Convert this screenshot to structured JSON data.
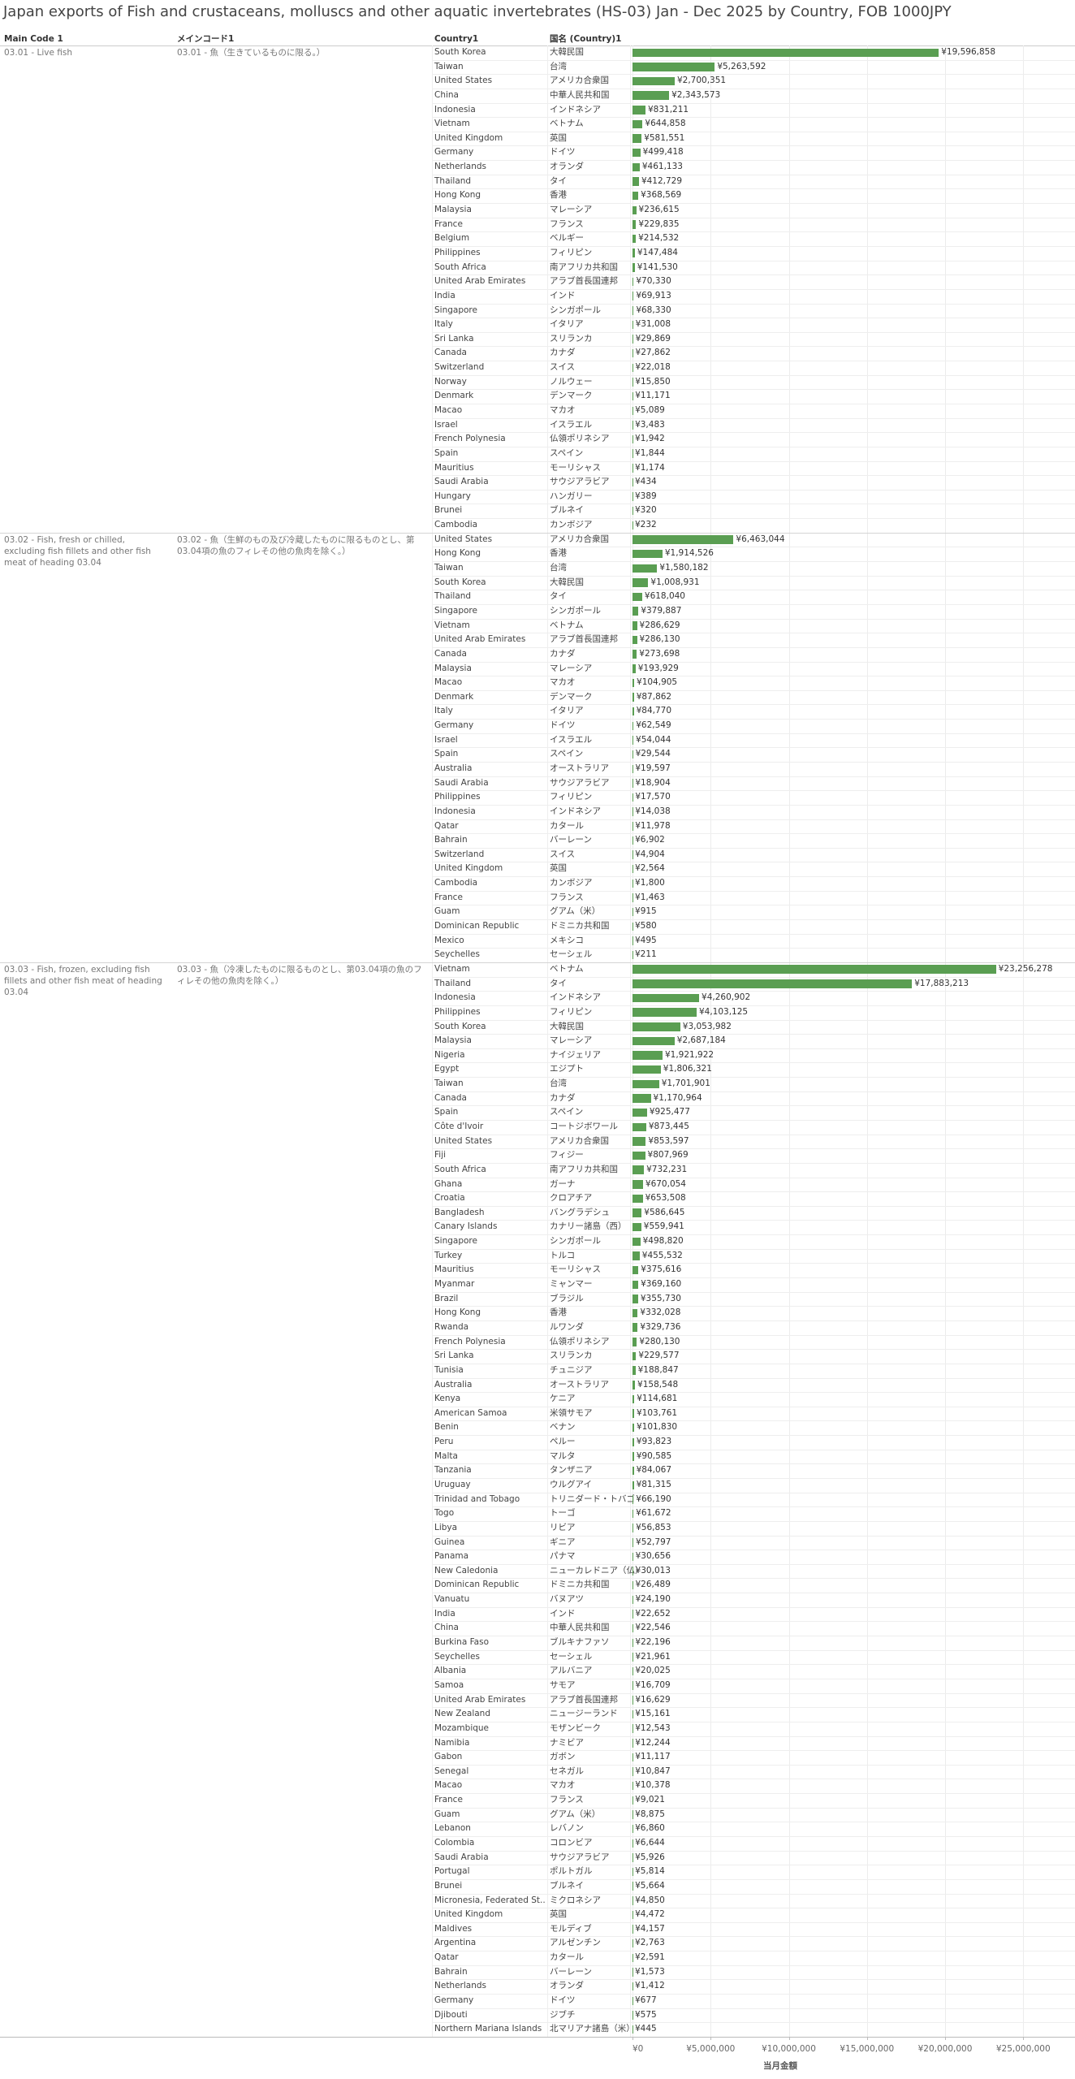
{
  "chart_data": {
    "type": "bar",
    "orientation": "horizontal",
    "title": "Japan exports of Fish and crustaceans, molluscs and other aquatic invertebrates (HS-03) Jan - Dec 2025 by Country, FOB 1000JPY",
    "columns": [
      "Main Code 1",
      "メインコード1",
      "Country1",
      "国名 (Country)1"
    ],
    "x_label": "当月金額",
    "color": "#5a9e52",
    "xlim": [
      0,
      28000000
    ],
    "xticks": [
      {
        "value": 0,
        "label": "¥0"
      },
      {
        "value": 5000000,
        "label": "¥5,000,000"
      },
      {
        "value": 10000000,
        "label": "¥10,000,000"
      },
      {
        "value": 15000000,
        "label": "¥15,000,000"
      },
      {
        "value": 20000000,
        "label": "¥20,000,000"
      },
      {
        "value": 25000000,
        "label": "¥25,000,000"
      }
    ],
    "grid": true,
    "groups": [
      {
        "code": "03.01 - Live fish",
        "code_ja": "03.01 - 魚（生きているものに限る。）",
        "categories": [
          "South Korea",
          "Taiwan",
          "United States",
          "China",
          "Indonesia",
          "Vietnam",
          "United Kingdom",
          "Germany",
          "Netherlands",
          "Thailand",
          "Hong Kong",
          "Malaysia",
          "France",
          "Belgium",
          "Philippines",
          "South Africa",
          "United Arab Emirates",
          "India",
          "Singapore",
          "Italy",
          "Sri Lanka",
          "Canada",
          "Switzerland",
          "Norway",
          "Denmark",
          "Macao",
          "Israel",
          "French Polynesia",
          "Spain",
          "Mauritius",
          "Saudi Arabia",
          "Hungary",
          "Brunei",
          "Cambodia"
        ],
        "categories_ja": [
          "大韓民国",
          "台湾",
          "アメリカ合衆国",
          "中華人民共和国",
          "インドネシア",
          "ベトナム",
          "英国",
          "ドイツ",
          "オランダ",
          "タイ",
          "香港",
          "マレーシア",
          "フランス",
          "ベルギー",
          "フィリピン",
          "南アフリカ共和国",
          "アラブ首長国連邦",
          "インド",
          "シンガポール",
          "イタリア",
          "スリランカ",
          "カナダ",
          "スイス",
          "ノルウェー",
          "デンマーク",
          "マカオ",
          "イスラエル",
          "仏領ポリネシア",
          "スペイン",
          "モーリシャス",
          "サウジアラビア",
          "ハンガリー",
          "ブルネイ",
          "カンボジア"
        ],
        "values": [
          19596858,
          5263592,
          2700351,
          2343573,
          831211,
          644858,
          581551,
          499418,
          461133,
          412729,
          368569,
          236615,
          229835,
          214532,
          147484,
          141530,
          70330,
          69913,
          68330,
          31008,
          29869,
          27862,
          22018,
          15850,
          11171,
          5089,
          3483,
          1942,
          1844,
          1174,
          434,
          389,
          320,
          232
        ],
        "value_labels": [
          "¥19,596,858",
          "¥5,263,592",
          "¥2,700,351",
          "¥2,343,573",
          "¥831,211",
          "¥644,858",
          "¥581,551",
          "¥499,418",
          "¥461,133",
          "¥412,729",
          "¥368,569",
          "¥236,615",
          "¥229,835",
          "¥214,532",
          "¥147,484",
          "¥141,530",
          "¥70,330",
          "¥69,913",
          "¥68,330",
          "¥31,008",
          "¥29,869",
          "¥27,862",
          "¥22,018",
          "¥15,850",
          "¥11,171",
          "¥5,089",
          "¥3,483",
          "¥1,942",
          "¥1,844",
          "¥1,174",
          "¥434",
          "¥389",
          "¥320",
          "¥232"
        ]
      },
      {
        "code": "03.02 - Fish, fresh or chilled, excluding fish fillets and other fish meat of heading 03.04",
        "code_ja": "03.02 - 魚（生鮮のもの及び冷蔵したものに限るものとし、第03.04項の魚のフィレその他の魚肉を除く。）",
        "categories": [
          "United States",
          "Hong Kong",
          "Taiwan",
          "South Korea",
          "Thailand",
          "Singapore",
          "Vietnam",
          "United Arab Emirates",
          "Canada",
          "Malaysia",
          "Macao",
          "Denmark",
          "Italy",
          "Germany",
          "Israel",
          "Spain",
          "Australia",
          "Saudi Arabia",
          "Philippines",
          "Indonesia",
          "Qatar",
          "Bahrain",
          "Switzerland",
          "United Kingdom",
          "Cambodia",
          "France",
          "Guam",
          "Dominican Republic",
          "Mexico",
          "Seychelles"
        ],
        "categories_ja": [
          "アメリカ合衆国",
          "香港",
          "台湾",
          "大韓民国",
          "タイ",
          "シンガポール",
          "ベトナム",
          "アラブ首長国連邦",
          "カナダ",
          "マレーシア",
          "マカオ",
          "デンマーク",
          "イタリア",
          "ドイツ",
          "イスラエル",
          "スペイン",
          "オーストラリア",
          "サウジアラビア",
          "フィリピン",
          "インドネシア",
          "カタール",
          "バーレーン",
          "スイス",
          "英国",
          "カンボジア",
          "フランス",
          "グアム（米）",
          "ドミニカ共和国",
          "メキシコ",
          "セーシェル"
        ],
        "values": [
          6463044,
          1914526,
          1580182,
          1008931,
          618040,
          379887,
          286629,
          286130,
          273698,
          193929,
          104905,
          87862,
          84770,
          62549,
          54044,
          29544,
          19597,
          18904,
          17570,
          14038,
          11978,
          6902,
          4904,
          2564,
          1800,
          1463,
          915,
          580,
          495,
          211
        ],
        "value_labels": [
          "¥6,463,044",
          "¥1,914,526",
          "¥1,580,182",
          "¥1,008,931",
          "¥618,040",
          "¥379,887",
          "¥286,629",
          "¥286,130",
          "¥273,698",
          "¥193,929",
          "¥104,905",
          "¥87,862",
          "¥84,770",
          "¥62,549",
          "¥54,044",
          "¥29,544",
          "¥19,597",
          "¥18,904",
          "¥17,570",
          "¥14,038",
          "¥11,978",
          "¥6,902",
          "¥4,904",
          "¥2,564",
          "¥1,800",
          "¥1,463",
          "¥915",
          "¥580",
          "¥495",
          "¥211"
        ]
      },
      {
        "code": "03.03 - Fish, frozen, excluding fish fillets and other fish meat of heading 03.04",
        "code_ja": "03.03 - 魚（冷凍したものに限るものとし、第03.04項の魚のフィレその他の魚肉を除く。）",
        "categories": [
          "Vietnam",
          "Thailand",
          "Indonesia",
          "Philippines",
          "South Korea",
          "Malaysia",
          "Nigeria",
          "Egypt",
          "Taiwan",
          "Canada",
          "Spain",
          "Côte d'Ivoir",
          "United States",
          "Fiji",
          "South Africa",
          "Ghana",
          "Croatia",
          "Bangladesh",
          "Canary Islands",
          "Singapore",
          "Turkey",
          "Mauritius",
          "Myanmar",
          "Brazil",
          "Hong Kong",
          "Rwanda",
          "French Polynesia",
          "Sri Lanka",
          "Tunisia",
          "Australia",
          "Kenya",
          "American Samoa",
          "Benin",
          "Peru",
          "Malta",
          "Tanzania",
          "Uruguay",
          "Trinidad and Tobago",
          "Togo",
          "Libya",
          "Guinea",
          "Panama",
          "New Caledonia",
          "Dominican Republic",
          "Vanuatu",
          "India",
          "China",
          "Burkina Faso",
          "Seychelles",
          "Albania",
          "Samoa",
          "United Arab Emirates",
          "New Zealand",
          "Mozambique",
          "Namibia",
          "Gabon",
          "Senegal",
          "Macao",
          "France",
          "Guam",
          "Lebanon",
          "Colombia",
          "Saudi Arabia",
          "Portugal",
          "Brunei",
          "Micronesia, Federated St..",
          "United Kingdom",
          "Maldives",
          "Argentina",
          "Qatar",
          "Bahrain",
          "Netherlands",
          "Germany",
          "Djibouti",
          "Northern Mariana Islands"
        ],
        "categories_ja": [
          "ベトナム",
          "タイ",
          "インドネシア",
          "フィリピン",
          "大韓民国",
          "マレーシア",
          "ナイジェリア",
          "エジプト",
          "台湾",
          "カナダ",
          "スペイン",
          "コートジボワール",
          "アメリカ合衆国",
          "フィジー",
          "南アフリカ共和国",
          "ガーナ",
          "クロアチア",
          "バングラデシュ",
          "カナリー諸島（西）",
          "シンガポール",
          "トルコ",
          "モーリシャス",
          "ミャンマー",
          "ブラジル",
          "香港",
          "ルワンダ",
          "仏領ポリネシア",
          "スリランカ",
          "チュニジア",
          "オーストラリア",
          "ケニア",
          "米領サモア",
          "ベナン",
          "ペルー",
          "マルタ",
          "タンザニア",
          "ウルグアイ",
          "トリニダード・トバゴ",
          "トーゴ",
          "リビア",
          "ギニア",
          "パナマ",
          "ニューカレドニア（仏）",
          "ドミニカ共和国",
          "バヌアツ",
          "インド",
          "中華人民共和国",
          "ブルキナファソ",
          "セーシェル",
          "アルバニア",
          "サモア",
          "アラブ首長国連邦",
          "ニュージーランド",
          "モザンビーク",
          "ナミビア",
          "ガボン",
          "セネガル",
          "マカオ",
          "フランス",
          "グアム（米）",
          "レバノン",
          "コロンビア",
          "サウジアラビア",
          "ポルトガル",
          "ブルネイ",
          "ミクロネシア",
          "英国",
          "モルディブ",
          "アルゼンチン",
          "カタール",
          "バーレーン",
          "オランダ",
          "ドイツ",
          "ジブチ",
          "北マリアナ諸島（米）"
        ],
        "values": [
          23256278,
          17883213,
          4260902,
          4103125,
          3053982,
          2687184,
          1921922,
          1806321,
          1701901,
          1170964,
          925477,
          873445,
          853597,
          807969,
          732231,
          670054,
          653508,
          586645,
          559941,
          498820,
          455532,
          375616,
          369160,
          355730,
          332028,
          329736,
          280130,
          229577,
          188847,
          158548,
          114681,
          103761,
          101830,
          93823,
          90585,
          84067,
          81315,
          66190,
          61672,
          56853,
          52797,
          30656,
          30013,
          26489,
          24190,
          22652,
          22546,
          22196,
          21961,
          20025,
          16709,
          16629,
          15161,
          12543,
          12244,
          11117,
          10847,
          10378,
          9021,
          8875,
          6860,
          6644,
          5926,
          5814,
          5664,
          4850,
          4472,
          4157,
          2763,
          2591,
          1573,
          1412,
          677,
          575,
          445
        ],
        "value_labels": [
          "¥23,256,278",
          "¥17,883,213",
          "¥4,260,902",
          "¥4,103,125",
          "¥3,053,982",
          "¥2,687,184",
          "¥1,921,922",
          "¥1,806,321",
          "¥1,701,901",
          "¥1,170,964",
          "¥925,477",
          "¥873,445",
          "¥853,597",
          "¥807,969",
          "¥732,231",
          "¥670,054",
          "¥653,508",
          "¥586,645",
          "¥559,941",
          "¥498,820",
          "¥455,532",
          "¥375,616",
          "¥369,160",
          "¥355,730",
          "¥332,028",
          "¥329,736",
          "¥280,130",
          "¥229,577",
          "¥188,847",
          "¥158,548",
          "¥114,681",
          "¥103,761",
          "¥101,830",
          "¥93,823",
          "¥90,585",
          "¥84,067",
          "¥81,315",
          "¥66,190",
          "¥61,672",
          "¥56,853",
          "¥52,797",
          "¥30,656",
          "¥30,013",
          "¥26,489",
          "¥24,190",
          "¥22,652",
          "¥22,546",
          "¥22,196",
          "¥21,961",
          "¥20,025",
          "¥16,709",
          "¥16,629",
          "¥15,161",
          "¥12,543",
          "¥12,244",
          "¥11,117",
          "¥10,847",
          "¥10,378",
          "¥9,021",
          "¥8,875",
          "¥6,860",
          "¥6,644",
          "¥5,926",
          "¥5,814",
          "¥5,664",
          "¥4,850",
          "¥4,472",
          "¥4,157",
          "¥2,763",
          "¥2,591",
          "¥1,573",
          "¥1,412",
          "¥677",
          "¥575",
          "¥445"
        ]
      }
    ]
  }
}
